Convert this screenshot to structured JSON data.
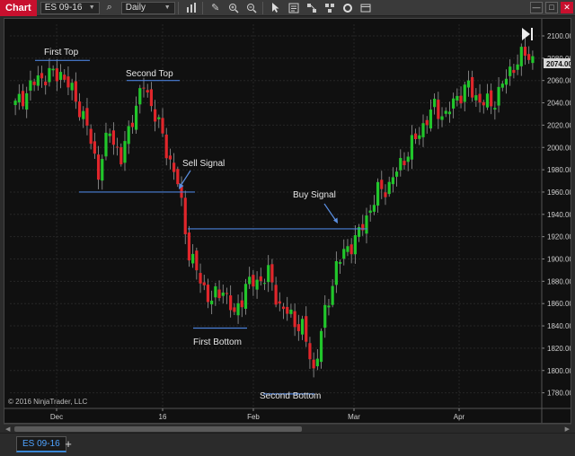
{
  "toolbar": {
    "chart_tab": "Chart",
    "instrument": "ES 09-16",
    "interval": "Daily",
    "icons": [
      "search-icon",
      "bar-chart-icon",
      "pencil-icon",
      "zoom-in-icon",
      "zoom-out-icon",
      "cursor-icon",
      "data-box-icon",
      "strategy-icon",
      "indicators-icon",
      "reload-icon",
      "properties-icon"
    ]
  },
  "window": {
    "minimize": "—",
    "maximize": "□",
    "close": "✕"
  },
  "chart": {
    "copyright": "© 2016 NinjaTrader, LLC",
    "price_labels": [
      "2100.00",
      "2080.00",
      "2060.00",
      "2040.00",
      "2020.00",
      "2000.00",
      "1980.00",
      "1960.00",
      "1940.00",
      "1920.00",
      "1900.00",
      "1880.00",
      "1860.00",
      "1840.00",
      "1820.00",
      "1800.00",
      "1780.00"
    ],
    "current_price": "2074.00",
    "date_labels": [
      "Dec",
      "16",
      "Feb",
      "Mar",
      "Apr"
    ],
    "annotations": {
      "first_top": "First Top",
      "second_top": "Second Top",
      "sell_signal": "Sell Signal",
      "buy_signal": "Buy Signal",
      "first_bottom": "First Bottom",
      "second_bottom": "Second Bottom"
    },
    "colors": {
      "up": "#21c62b",
      "down": "#e0262b",
      "background": "#101010",
      "annotation_line": "#4a7fd8"
    }
  },
  "tabs": {
    "active": "ES 09-16",
    "add": "+"
  }
}
